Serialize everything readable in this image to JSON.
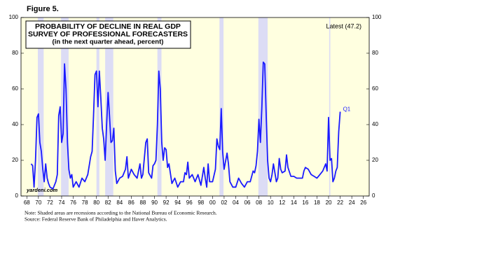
{
  "figure_label": "Figure 5.",
  "chart_data": {
    "type": "line",
    "title": [
      "PROBABILITY OF DECLINE IN REAL GDP",
      "SURVEY OF PROFESSIONAL FORECASTERS",
      "(in the next quarter ahead, percent)"
    ],
    "annotation_latest": "Latest (47.2)",
    "annotation_last_point": "Q1",
    "watermark": "yardeni.com",
    "notes": [
      "Note: Shaded areas are recessions according to the National Bureau of Economic Research.",
      "Source: Federal Reserve Bank of Philadelphia and Haver Analytics."
    ],
    "x": [
      1968.75,
      1969,
      1969.25,
      1969.5,
      1969.75,
      1970,
      1970.25,
      1970.5,
      1970.75,
      1971,
      1971.25,
      1971.5,
      1971.75,
      1972,
      1972.5,
      1973,
      1973.25,
      1973.5,
      1973.75,
      1974,
      1974.25,
      1974.5,
      1974.75,
      1975,
      1975.25,
      1975.5,
      1975.75,
      1976,
      1976.5,
      1977,
      1977.5,
      1978,
      1978.5,
      1979,
      1979.25,
      1979.5,
      1979.75,
      1980,
      1980.25,
      1980.5,
      1980.75,
      1981,
      1981.25,
      1981.5,
      1981.75,
      1982,
      1982.25,
      1982.5,
      1982.75,
      1983,
      1983.25,
      1983.5,
      1984,
      1984.5,
      1985,
      1985.25,
      1985.5,
      1986,
      1986.5,
      1987,
      1987.5,
      1987.75,
      1988,
      1988.5,
      1988.75,
      1989,
      1989.5,
      1989.75,
      1990,
      1990.25,
      1990.5,
      1990.75,
      1991,
      1991.25,
      1991.5,
      1991.75,
      1992,
      1992.25,
      1992.5,
      1993,
      1993.5,
      1994,
      1994.5,
      1995,
      1995.25,
      1995.5,
      1995.75,
      1996,
      1996.5,
      1997,
      1997.5,
      1998,
      1998.5,
      1998.75,
      1999,
      1999.25,
      1999.5,
      2000,
      2000.5,
      2000.75,
      2001,
      2001.25,
      2001.5,
      2001.75,
      2002,
      2002.5,
      2002.75,
      2003,
      2003.5,
      2004,
      2004.5,
      2005,
      2005.5,
      2006,
      2006.5,
      2007,
      2007.25,
      2007.5,
      2007.75,
      2008,
      2008.25,
      2008.5,
      2008.75,
      2009,
      2009.25,
      2009.5,
      2009.75,
      2010,
      2010.25,
      2010.5,
      2010.75,
      2011,
      2011.25,
      2011.5,
      2011.75,
      2012,
      2012.5,
      2012.75,
      2013,
      2013.5,
      2014,
      2014.5,
      2015,
      2015.5,
      2015.75,
      2016,
      2016.5,
      2017,
      2017.5,
      2018,
      2018.5,
      2019,
      2019.5,
      2019.75,
      2020,
      2020.25,
      2020.5,
      2020.75,
      2021,
      2021.25,
      2021.5,
      2021.75,
      2022
    ],
    "series": [
      {
        "color": "#1a1aff",
        "values": [
          18,
          17,
          5,
          20,
          44,
          46,
          30,
          25,
          15,
          8,
          18,
          10,
          7,
          5,
          4,
          8,
          12,
          45,
          50,
          30,
          35,
          74,
          60,
          30,
          15,
          10,
          12,
          5,
          8,
          5,
          10,
          8,
          12,
          22,
          25,
          45,
          68,
          70,
          50,
          70,
          55,
          38,
          32,
          20,
          40,
          58,
          45,
          30,
          31,
          38,
          14,
          7,
          10,
          11,
          15,
          22,
          10,
          15,
          12,
          10,
          18,
          10,
          12,
          30,
          32,
          13,
          10,
          17,
          18,
          20,
          40,
          70,
          60,
          30,
          20,
          27,
          26,
          16,
          18,
          7,
          10,
          5,
          8,
          8,
          13,
          12,
          19,
          10,
          12,
          8,
          12,
          6,
          16,
          10,
          5,
          18,
          8,
          8,
          15,
          32,
          28,
          26,
          49,
          25,
          15,
          24,
          18,
          8,
          5,
          5,
          10,
          7,
          5,
          8,
          8,
          14,
          13,
          17,
          25,
          43,
          30,
          50,
          75,
          74,
          45,
          20,
          10,
          8,
          12,
          18,
          13,
          8,
          10,
          21,
          15,
          13,
          14,
          23,
          16,
          11,
          11,
          10,
          10,
          10,
          14,
          16,
          15,
          12,
          11,
          10,
          12,
          14,
          18,
          14,
          44,
          20,
          21,
          8,
          10,
          14,
          16,
          36,
          47.2
        ]
      }
    ],
    "shaded_periods": [
      [
        1969.9,
        1970.9
      ],
      [
        1973.9,
        1975.2
      ],
      [
        1980.0,
        1980.5
      ],
      [
        1981.5,
        1982.9
      ],
      [
        1990.5,
        1991.2
      ],
      [
        2001.2,
        2001.9
      ],
      [
        2007.9,
        2009.5
      ],
      [
        2020.1,
        2020.3
      ]
    ],
    "shade_color": "#dcdcf5",
    "background": "#ffffe0",
    "xlim": [
      1967,
      2027
    ],
    "ylim": [
      0,
      100
    ],
    "yticks": [
      0,
      20,
      40,
      60,
      80,
      100
    ],
    "xticks": [
      {
        "value": 1968,
        "label": "68"
      },
      {
        "value": 1970,
        "label": "70"
      },
      {
        "value": 1972,
        "label": "72"
      },
      {
        "value": 1974,
        "label": "74"
      },
      {
        "value": 1976,
        "label": "76"
      },
      {
        "value": 1978,
        "label": "78"
      },
      {
        "value": 1980,
        "label": "80"
      },
      {
        "value": 1982,
        "label": "82"
      },
      {
        "value": 1984,
        "label": "84"
      },
      {
        "value": 1986,
        "label": "86"
      },
      {
        "value": 1988,
        "label": "88"
      },
      {
        "value": 1990,
        "label": "90"
      },
      {
        "value": 1992,
        "label": "92"
      },
      {
        "value": 1994,
        "label": "94"
      },
      {
        "value": 1996,
        "label": "96"
      },
      {
        "value": 1998,
        "label": "98"
      },
      {
        "value": 2000,
        "label": "00"
      },
      {
        "value": 2002,
        "label": "02"
      },
      {
        "value": 2004,
        "label": "04"
      },
      {
        "value": 2006,
        "label": "06"
      },
      {
        "value": 2008,
        "label": "08"
      },
      {
        "value": 2010,
        "label": "10"
      },
      {
        "value": 2012,
        "label": "12"
      },
      {
        "value": 2014,
        "label": "14"
      },
      {
        "value": 2016,
        "label": "16"
      },
      {
        "value": 2018,
        "label": "18"
      },
      {
        "value": 2020,
        "label": "20"
      },
      {
        "value": 2022,
        "label": "22"
      },
      {
        "value": 2024,
        "label": "24"
      },
      {
        "value": 2026,
        "label": "26"
      }
    ]
  }
}
